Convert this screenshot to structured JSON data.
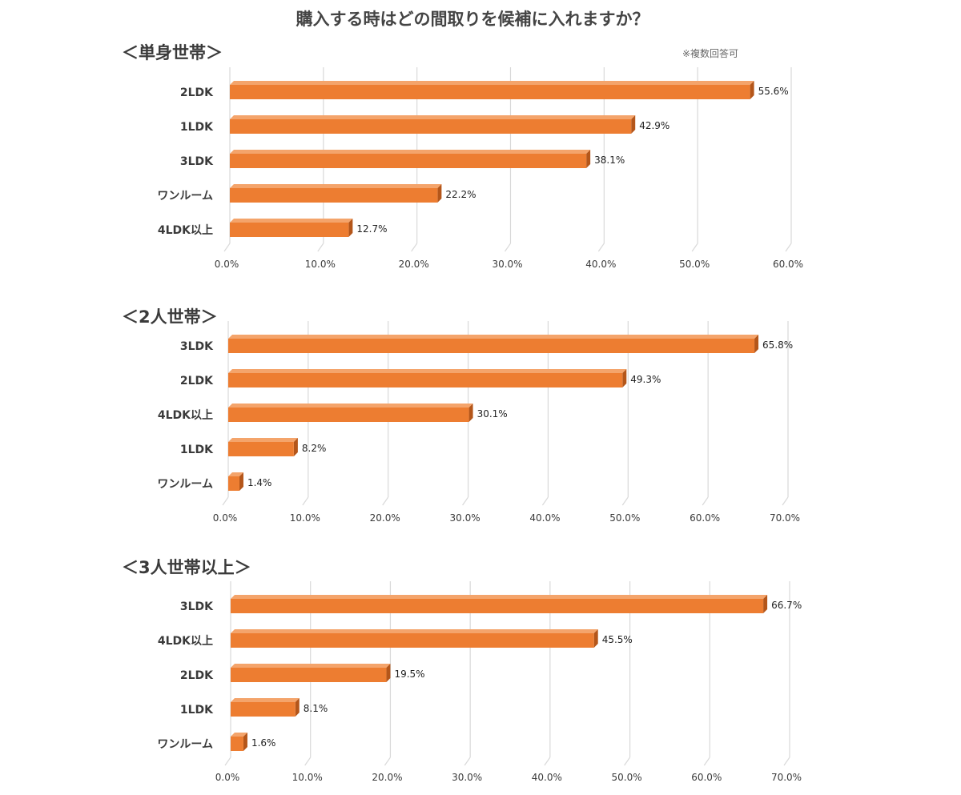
{
  "page": {
    "title": "購入する時はどの間取りを候補に入れますか？"
  },
  "colors": {
    "bar_front": "#ED7D31",
    "bar_top": "#F4A46B",
    "bar_side": "#B4561A",
    "grid": "#D9D9D9"
  },
  "chart_data": [
    {
      "type": "bar",
      "orientation": "horizontal",
      "title": "＜単身世帯＞",
      "note": "※複数回答可",
      "categories": [
        "2LDK",
        "1LDK",
        "3LDK",
        "ワンルーム",
        "4LDK以上"
      ],
      "values": [
        55.6,
        42.9,
        38.1,
        22.2,
        12.7
      ],
      "value_labels": [
        "55.6%",
        "42.9%",
        "38.1%",
        "22.2%",
        "12.7%"
      ],
      "xlim": [
        0,
        60
      ],
      "xticks": [
        "0.0%",
        "10.0%",
        "20.0%",
        "30.0%",
        "40.0%",
        "50.0%",
        "60.0%"
      ],
      "grid": true,
      "xlabel": "",
      "ylabel": ""
    },
    {
      "type": "bar",
      "orientation": "horizontal",
      "title": "＜2人世帯＞",
      "note": "",
      "categories": [
        "3LDK",
        "2LDK",
        "4LDK以上",
        "1LDK",
        "ワンルーム"
      ],
      "values": [
        65.8,
        49.3,
        30.1,
        8.2,
        1.4
      ],
      "value_labels": [
        "65.8%",
        "49.3%",
        "30.1%",
        "8.2%",
        "1.4%"
      ],
      "xlim": [
        0,
        70
      ],
      "xticks": [
        "0.0%",
        "10.0%",
        "20.0%",
        "30.0%",
        "40.0%",
        "50.0%",
        "60.0%",
        "70.0%"
      ],
      "grid": true,
      "xlabel": "",
      "ylabel": ""
    },
    {
      "type": "bar",
      "orientation": "horizontal",
      "title": "＜3人世帯以上＞",
      "note": "",
      "categories": [
        "3LDK",
        "4LDK以上",
        "2LDK",
        "1LDK",
        "ワンルーム"
      ],
      "values": [
        66.7,
        45.5,
        19.5,
        8.1,
        1.6
      ],
      "value_labels": [
        "66.7%",
        "45.5%",
        "19.5%",
        "8.1%",
        "1.6%"
      ],
      "xlim": [
        0,
        70
      ],
      "xticks": [
        "0.0%",
        "10.0%",
        "20.0%",
        "30.0%",
        "40.0%",
        "50.0%",
        "60.0%",
        "70.0%"
      ],
      "grid": true,
      "xlabel": "",
      "ylabel": ""
    }
  ]
}
